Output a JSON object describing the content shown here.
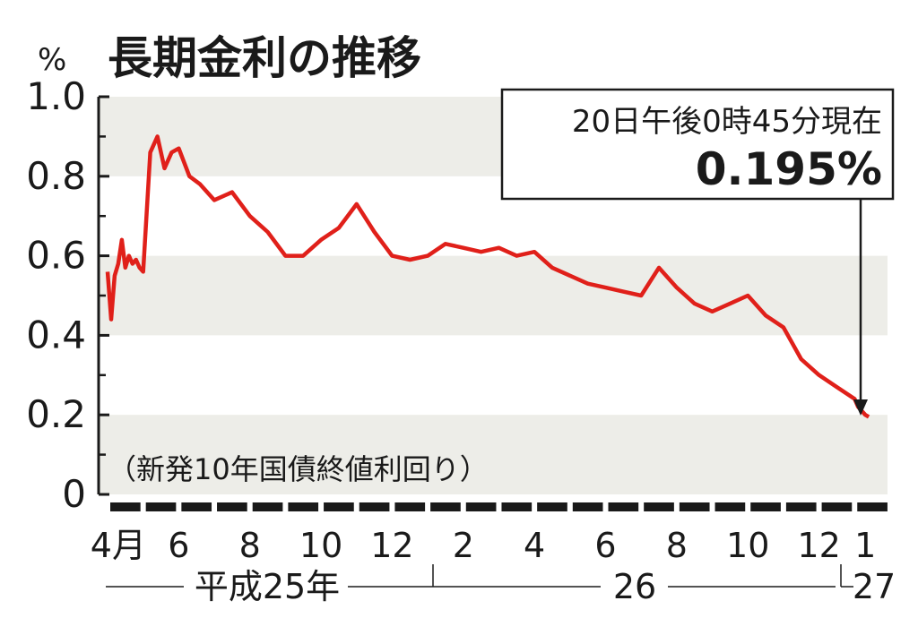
{
  "chart_data": {
    "type": "line",
    "title": "長期金利の推移",
    "subtitle": "（新発10年国債終値利回り）",
    "ylabel": "%",
    "ylim": [
      0,
      1.0
    ],
    "yticks": [
      "0",
      "0.2",
      "0.4",
      "0.6",
      "0.8",
      "1.0"
    ],
    "grid": "horizontal bands",
    "line_color": "#e0201a",
    "band_color": "#ededE8",
    "xaxis": {
      "month_labels": [
        "4月",
        "6",
        "8",
        "10",
        "12",
        "2",
        "4",
        "6",
        "8",
        "10",
        "12",
        "1"
      ],
      "year_labels": [
        "平成25年",
        "26",
        "27"
      ]
    },
    "callout": {
      "time": "20日午後0時45分現在",
      "value": "0.195%"
    },
    "series": [
      {
        "x": [
          0,
          0.1,
          0.2,
          0.3,
          0.4,
          0.5,
          0.6,
          0.7,
          0.8,
          0.9,
          1.0,
          1.2,
          1.4,
          1.6,
          1.8,
          2.0,
          2.3,
          2.6,
          3.0,
          3.5,
          4.0,
          4.5,
          5.0,
          5.5,
          6.0,
          6.5,
          7.0,
          7.5,
          8.0,
          8.5,
          9.0,
          9.5,
          10.0,
          10.5,
          11.0,
          11.5,
          12.0,
          12.5,
          13.0,
          13.5,
          14.0,
          14.5,
          15.0,
          15.5,
          16.0,
          16.5,
          17.0,
          17.5,
          18.0,
          18.5,
          19.0,
          19.5,
          20.0,
          20.5,
          21.0,
          21.1,
          21.2,
          21.3,
          21.4
        ],
        "values": [
          0.56,
          0.44,
          0.55,
          0.58,
          0.64,
          0.57,
          0.6,
          0.58,
          0.59,
          0.57,
          0.56,
          0.86,
          0.9,
          0.82,
          0.86,
          0.87,
          0.8,
          0.78,
          0.74,
          0.76,
          0.7,
          0.66,
          0.6,
          0.6,
          0.64,
          0.67,
          0.73,
          0.66,
          0.6,
          0.59,
          0.6,
          0.63,
          0.62,
          0.61,
          0.62,
          0.6,
          0.61,
          0.57,
          0.55,
          0.53,
          0.52,
          0.51,
          0.5,
          0.57,
          0.52,
          0.48,
          0.46,
          0.48,
          0.5,
          0.45,
          0.42,
          0.34,
          0.3,
          0.27,
          0.24,
          0.22,
          0.21,
          0.2,
          0.195
        ]
      }
    ]
  }
}
